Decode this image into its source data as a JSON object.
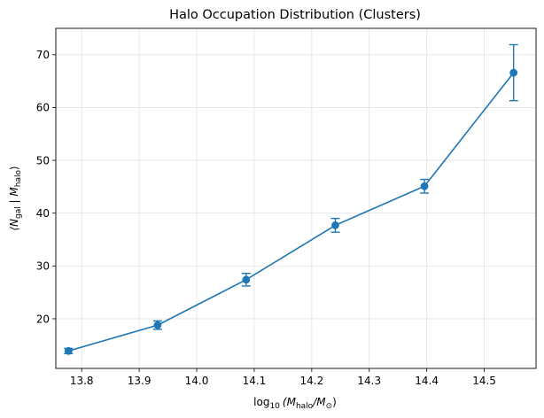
{
  "chart_data": {
    "type": "line",
    "title": "Halo Occupation Distribution (Clusters)",
    "xlabel_parts": {
      "prefix": "log",
      "base": "10",
      "open": "(M",
      "sub1": "halo",
      "mid": "/M",
      "sub2": "⊙",
      "close": ")"
    },
    "ylabel_parts": {
      "open": "⟨N",
      "sub1": "gal",
      "mid": " | M",
      "sub2": "halo",
      "close": "⟩"
    },
    "xlim": [
      13.755,
      14.59
    ],
    "ylim": [
      10.6,
      75.0
    ],
    "xticks": [
      13.8,
      13.9,
      14.0,
      14.1,
      14.2,
      14.3,
      14.4,
      14.5
    ],
    "xtick_labels": [
      "13.8",
      "13.9",
      "14.0",
      "14.1",
      "14.2",
      "14.3",
      "14.4",
      "14.5"
    ],
    "yticks": [
      20,
      30,
      40,
      50,
      60,
      70
    ],
    "ytick_labels": [
      "20",
      "30",
      "40",
      "50",
      "60",
      "70"
    ],
    "grid": true,
    "color": "#1f77b4",
    "series": [
      {
        "x": [
          13.777,
          13.932,
          14.086,
          14.241,
          14.396,
          14.551
        ],
        "y": [
          13.9,
          18.8,
          27.4,
          37.7,
          45.1,
          66.6
        ],
        "yerr": [
          0.5,
          0.8,
          1.2,
          1.3,
          1.3,
          5.3
        ]
      }
    ]
  }
}
